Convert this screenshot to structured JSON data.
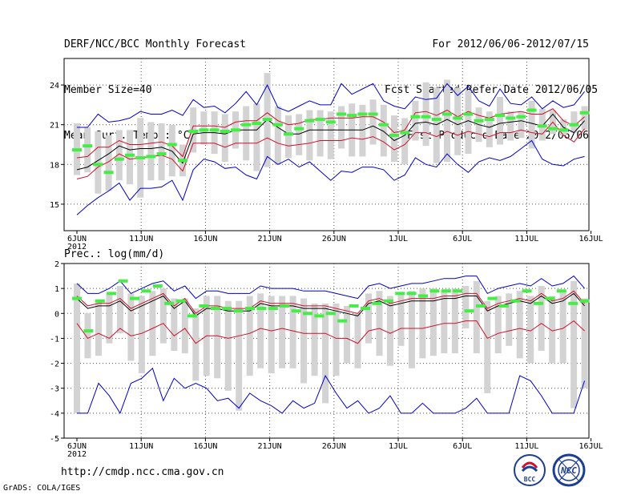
{
  "header": {
    "left": [
      "DERF/NCC/BCC Monthly Forecast",
      "Member Size=40",
      "Mean Surf. Temp.: °C"
    ],
    "right": [
      "For 2012/06/06-2012/07/15",
      "Fcst Started Refer Date 2012/06/05",
      "Fcst Produced Date 2012/06/06"
    ]
  },
  "footer": {
    "url": "http://cmdp.ncc.cma.gov.cn",
    "credit": "GrADS: COLA/IGES",
    "logo_bcc": "BCC",
    "logo_ncc": "NCC"
  },
  "colors": {
    "gray_bar": "#d3d3d3",
    "median": "#000000",
    "inner": "#d0102a",
    "outer": "#0000c8",
    "obs": "#44ee44"
  },
  "chart_data": [
    {
      "type": "line",
      "name": "temperature",
      "title": "Mean Surf. Temp.: °C",
      "ylabel": "°C",
      "ylim": [
        13,
        26
      ],
      "yticks": [
        15,
        18,
        21,
        24
      ],
      "xlabels": [
        "6JUN\n2012",
        "11JUN",
        "16JUN",
        "21JUN",
        "26JUN",
        "1JUL",
        "6JUL",
        "11JUL",
        "16JUL"
      ],
      "x_start_day": 1,
      "days": 40,
      "series": [
        {
          "name": "mean",
          "color": "#000000",
          "values": [
            17.6,
            17.8,
            18.3,
            18.8,
            19.4,
            19.1,
            19.2,
            19.2,
            19.3,
            19.0,
            18.1,
            20.3,
            20.4,
            20.4,
            20.3,
            20.6,
            20.6,
            20.6,
            21.4,
            20.8,
            20.3,
            20.3,
            20.6,
            20.6,
            20.6,
            20.6,
            20.6,
            20.6,
            20.9,
            20.5,
            19.8,
            20.2,
            21.1,
            21.2,
            21.0,
            21.4,
            21.0,
            21.3,
            21.0,
            20.8,
            21.1,
            21.2,
            21.3,
            21.1,
            20.9,
            21.8,
            20.8,
            20.4,
            21.3
          ]
        },
        {
          "name": "upper",
          "color": "#d0102a",
          "values": [
            18.5,
            18.6,
            19.3,
            19.3,
            19.8,
            19.5,
            19.5,
            19.6,
            19.7,
            19.4,
            18.6,
            20.9,
            20.9,
            20.9,
            20.8,
            21.2,
            21.3,
            21.3,
            21.9,
            21.3,
            21.0,
            21.1,
            21.4,
            21.4,
            21.5,
            21.5,
            21.5,
            21.6,
            21.6,
            21.2,
            20.4,
            20.6,
            21.9,
            22.0,
            21.7,
            22.1,
            21.6,
            22.0,
            21.7,
            21.5,
            21.8,
            21.9,
            22.0,
            21.8,
            21.8,
            22.2,
            21.3,
            20.9,
            21.6
          ]
        },
        {
          "name": "lower",
          "color": "#d0102a",
          "values": [
            16.9,
            17.1,
            17.8,
            18.2,
            18.8,
            18.4,
            18.5,
            18.6,
            18.7,
            18.4,
            17.5,
            19.6,
            19.6,
            19.6,
            19.3,
            19.6,
            19.6,
            19.6,
            20.0,
            19.6,
            19.4,
            19.5,
            19.6,
            19.8,
            19.8,
            19.8,
            20.0,
            19.9,
            20.1,
            19.7,
            19.1,
            19.5,
            20.4,
            20.4,
            20.1,
            20.5,
            20.2,
            20.5,
            20.3,
            20.1,
            20.4,
            20.4,
            20.6,
            20.4,
            20.3,
            21.2,
            20.2,
            19.7,
            20.7
          ]
        },
        {
          "name": "max",
          "color": "#0000c8",
          "values": [
            20.8,
            20.8,
            21.8,
            21.2,
            21.3,
            21.5,
            22.0,
            21.8,
            21.8,
            22.1,
            21.7,
            22.9,
            22.3,
            22.4,
            21.9,
            22.6,
            23.5,
            22.5,
            24.0,
            22.3,
            22.0,
            22.4,
            22.8,
            22.5,
            22.5,
            24.1,
            23.3,
            23.7,
            24.1,
            22.8,
            22.4,
            22.2,
            23.1,
            22.9,
            23.0,
            24.1,
            23.2,
            23.9,
            22.8,
            22.4,
            23.7,
            22.6,
            22.5,
            23.1,
            22.2,
            22.8,
            22.3,
            22.5,
            23.5
          ]
        },
        {
          "name": "min",
          "color": "#0000c8",
          "values": [
            14.2,
            14.9,
            15.5,
            16.0,
            16.6,
            15.3,
            16.2,
            16.2,
            16.3,
            16.8,
            15.3,
            17.6,
            18.4,
            18.2,
            17.7,
            17.8,
            17.2,
            16.9,
            18.6,
            18.0,
            18.4,
            17.8,
            18.2,
            17.5,
            16.8,
            17.5,
            17.4,
            17.8,
            17.8,
            17.6,
            16.8,
            17.2,
            18.5,
            18.0,
            17.8,
            18.8,
            18.0,
            17.4,
            18.2,
            18.5,
            18.3,
            18.6,
            19.2,
            19.8,
            18.4,
            18.0,
            17.9,
            18.4,
            18.6
          ]
        },
        {
          "name": "observed",
          "color": "#44ee44",
          "style": "dash",
          "values": [
            19.1,
            19.4,
            18.0,
            17.4,
            18.4,
            18.7,
            18.5,
            18.6,
            18.8,
            19.5,
            18.3,
            20.5,
            20.6,
            20.6,
            20.5,
            20.6,
            21.0,
            21.1,
            21.4,
            21.0,
            20.3,
            20.7,
            21.3,
            21.4,
            21.2,
            21.8,
            21.7,
            21.8,
            21.8,
            21.0,
            20.2,
            20.4,
            21.6,
            21.6,
            21.4,
            21.8,
            21.5,
            21.8,
            21.3,
            21.4,
            21.7,
            21.5,
            21.6,
            22.1,
            20.9,
            20.7,
            20.6,
            21.0,
            21.9
          ]
        },
        {
          "name": "box_high",
          "values": [
            21.1,
            20.8,
            20.5,
            20.2,
            20.6,
            20.6,
            21.5,
            21.2,
            21.1,
            21.0,
            19.5,
            22.3,
            22.0,
            22.0,
            21.8,
            22.0,
            22.4,
            22.6,
            24.9,
            22.4,
            21.7,
            21.8,
            22.1,
            22.1,
            22.0,
            22.4,
            22.6,
            22.5,
            22.9,
            22.5,
            21.7,
            21.5,
            22.8,
            24.2,
            23.8,
            24.4,
            23.8,
            23.6,
            22.3,
            22.0,
            23.1,
            22.0,
            22.0,
            22.8,
            22.2,
            22.1,
            21.4,
            22.0,
            22.4
          ]
        },
        {
          "name": "box_low",
          "values": [
            17.2,
            17.4,
            15.8,
            16.0,
            16.8,
            16.5,
            15.5,
            16.8,
            16.8,
            17.1,
            17.1,
            18.9,
            19.5,
            18.8,
            18.2,
            19.2,
            18.3,
            17.5,
            17.8,
            18.0,
            18.5,
            18.7,
            18.3,
            18.6,
            18.4,
            19.2,
            18.6,
            18.6,
            19.5,
            18.6,
            18.2,
            18.0,
            19.8,
            19.4,
            18.1,
            18.2,
            18.7,
            18.8,
            19.7,
            19.3,
            19.5,
            19.8,
            20.0,
            19.2,
            19.8,
            20.3,
            20.2,
            20.4,
            20.6
          ]
        }
      ]
    },
    {
      "type": "line",
      "name": "precipitation",
      "title": "Prec.: log(mm/d)",
      "ylabel": "log(mm/d)",
      "ylim": [
        -5,
        2
      ],
      "yticks": [
        -5,
        -4,
        -3,
        -2,
        -1,
        0,
        1,
        2
      ],
      "xlabels": [
        "6JUN\n2012",
        "11JUN",
        "16JUN",
        "21JUN",
        "26JUN",
        "1JUL",
        "6JUL",
        "11JUL",
        "16JUL"
      ],
      "x_start_day": 1,
      "days": 40,
      "series": [
        {
          "name": "mean",
          "color": "#000000",
          "values": [
            0.6,
            0.2,
            0.3,
            0.3,
            0.5,
            0.1,
            0.3,
            0.5,
            0.7,
            0.2,
            0.5,
            -0.1,
            0.2,
            0.2,
            0.1,
            0.1,
            0.1,
            0.4,
            0.3,
            0.3,
            0.3,
            0.2,
            0.2,
            0.2,
            0.1,
            0.0,
            -0.1,
            0.4,
            0.5,
            0.3,
            0.4,
            0.5,
            0.5,
            0.5,
            0.6,
            0.6,
            0.7,
            0.7,
            0.1,
            0.3,
            0.4,
            0.5,
            0.4,
            0.7,
            0.4,
            0.5,
            0.8,
            0.3
          ]
        },
        {
          "name": "upper",
          "color": "#d0102a",
          "values": [
            0.7,
            0.3,
            0.4,
            0.4,
            0.6,
            0.2,
            0.4,
            0.6,
            0.8,
            0.3,
            0.6,
            0.0,
            0.3,
            0.3,
            0.2,
            0.2,
            0.2,
            0.5,
            0.4,
            0.4,
            0.4,
            0.3,
            0.3,
            0.3,
            0.2,
            0.1,
            0.0,
            0.5,
            0.6,
            0.4,
            0.5,
            0.6,
            0.6,
            0.6,
            0.7,
            0.7,
            0.8,
            0.8,
            0.2,
            0.4,
            0.5,
            0.6,
            0.5,
            0.8,
            0.5,
            0.6,
            0.9,
            0.4
          ]
        },
        {
          "name": "lower",
          "color": "#d0102a",
          "values": [
            -0.4,
            -1.0,
            -0.8,
            -1.0,
            -0.6,
            -0.9,
            -0.8,
            -0.6,
            -0.4,
            -0.9,
            -0.6,
            -1.2,
            -0.9,
            -0.9,
            -1.0,
            -0.9,
            -0.8,
            -0.6,
            -0.7,
            -0.6,
            -0.7,
            -0.8,
            -0.8,
            -0.8,
            -1.0,
            -1.0,
            -1.2,
            -0.7,
            -0.6,
            -0.8,
            -0.6,
            -0.6,
            -0.6,
            -0.5,
            -0.4,
            -0.4,
            -0.3,
            -0.3,
            -1.0,
            -0.8,
            -0.7,
            -0.6,
            -0.7,
            -0.4,
            -0.7,
            -0.6,
            -0.3,
            -0.7
          ]
        },
        {
          "name": "max",
          "color": "#0000c8",
          "values": [
            1.2,
            0.8,
            0.8,
            1.0,
            1.3,
            0.8,
            1.0,
            1.2,
            1.3,
            0.9,
            1.1,
            0.6,
            0.9,
            0.9,
            0.8,
            0.8,
            0.8,
            1.1,
            1.0,
            1.0,
            1.0,
            0.9,
            0.9,
            0.9,
            0.8,
            0.7,
            0.6,
            1.1,
            1.2,
            1.0,
            1.1,
            1.2,
            1.2,
            1.3,
            1.4,
            1.4,
            1.5,
            1.5,
            0.8,
            1.0,
            1.1,
            1.2,
            1.1,
            1.4,
            1.1,
            1.2,
            1.5,
            1.0
          ]
        },
        {
          "name": "min",
          "color": "#0000c8",
          "values": [
            -4.0,
            -4.0,
            -2.8,
            -3.3,
            -4.0,
            -2.8,
            -2.6,
            -2.2,
            -3.5,
            -2.6,
            -3.0,
            -2.8,
            -3.0,
            -3.5,
            -3.4,
            -3.8,
            -3.2,
            -3.5,
            -3.7,
            -4.0,
            -3.5,
            -3.8,
            -3.6,
            -2.5,
            -3.2,
            -3.8,
            -3.5,
            -4.0,
            -3.8,
            -3.3,
            -4.0,
            -4.0,
            -3.6,
            -4.0,
            -4.0,
            -4.0,
            -3.8,
            -3.4,
            -4.0,
            -4.0,
            -4.0,
            -2.5,
            -2.7,
            -3.3,
            -4.0,
            -4.0,
            -4.0,
            -2.7
          ]
        },
        {
          "name": "observed",
          "color": "#44ee44",
          "style": "dash",
          "values": [
            0.6,
            -0.7,
            0.5,
            0.8,
            1.3,
            0.6,
            0.9,
            1.1,
            0.4,
            0.5,
            -0.1,
            0.3,
            0.2,
            0.2,
            0.1,
            0.2,
            0.2,
            0.2,
            0.3,
            0.1,
            0.0,
            -0.1,
            0.0,
            -0.3,
            0.3,
            0.2,
            0.4,
            0.5,
            0.8,
            0.8,
            0.7,
            0.9,
            0.9,
            0.9,
            0.1,
            0.3,
            0.6,
            0.3,
            0.5,
            0.9,
            0.4,
            0.6,
            0.9,
            0.4,
            0.5
          ]
        },
        {
          "name": "box_high",
          "values": [
            1.2,
            0.0,
            0.5,
            0.8,
            1.1,
            0.8,
            0.7,
            0.9,
            1.0,
            0.6,
            0.6,
            0.2,
            0.7,
            0.7,
            0.5,
            0.5,
            0.7,
            0.8,
            0.7,
            0.7,
            0.7,
            0.6,
            0.4,
            0.4,
            0.4,
            0.3,
            0.0,
            0.8,
            0.9,
            0.7,
            0.8,
            0.9,
            1.0,
            1.0,
            0.9,
            1.0,
            1.1,
            1.3,
            0.5,
            0.7,
            0.8,
            0.9,
            0.7,
            1.1,
            0.7,
            0.9,
            1.3,
            0.6
          ]
        },
        {
          "name": "box_low",
          "values": [
            -4.0,
            -1.8,
            -1.7,
            -1.2,
            -0.8,
            -1.9,
            -2.4,
            -1.7,
            -1.2,
            -1.5,
            -1.6,
            -2.7,
            -2.5,
            -2.6,
            -3.1,
            -3.9,
            -2.5,
            -2.2,
            -2.4,
            -2.2,
            -2.2,
            -2.8,
            -2.5,
            -3.6,
            -2.5,
            -2.0,
            -2.2,
            -1.2,
            -1.7,
            -2.1,
            -1.3,
            -2.2,
            -1.8,
            -1.7,
            -1.6,
            -1.6,
            -0.6,
            -1.6,
            -3.2,
            -1.6,
            -1.3,
            -1.8,
            -2.0,
            -1.5,
            -2.0,
            -2.0,
            -3.8,
            -3.0
          ]
        }
      ]
    }
  ]
}
